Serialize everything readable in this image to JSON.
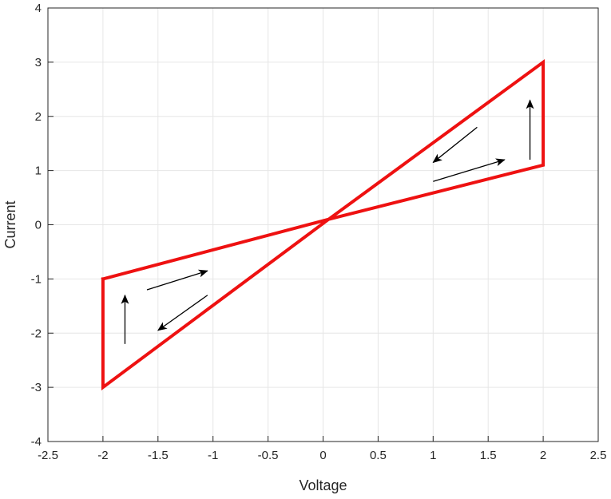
{
  "chart_data": {
    "type": "line",
    "title": "",
    "xlabel": "Voltage",
    "ylabel": "Current",
    "xlim": [
      -2.5,
      2.5
    ],
    "ylim": [
      -4,
      4
    ],
    "xticks": [
      -2.5,
      -2,
      -1.5,
      -1,
      -0.5,
      0,
      0.5,
      1,
      1.5,
      2,
      2.5
    ],
    "xtick_labels": [
      "-2.5",
      "-2",
      "-1.5",
      "-1",
      "-0.5",
      "0",
      "0.5",
      "1",
      "1.5",
      "2",
      "2.5"
    ],
    "yticks": [
      -4,
      -3,
      -2,
      -1,
      0,
      1,
      2,
      3,
      4
    ],
    "ytick_labels": [
      "-4",
      "-3",
      "-2",
      "-1",
      "0",
      "1",
      "2",
      "3",
      "4"
    ],
    "grid": true,
    "colors": {
      "series": "#ee1111",
      "arrows": "#000000",
      "grid": "#e6e6e6",
      "axes": "#262626"
    },
    "series": [
      {
        "x": [
          -2,
          -2,
          0.05,
          2,
          2,
          0.05,
          -2
        ],
        "y": [
          -1,
          -3,
          0.1,
          3,
          1.1,
          0.1,
          -1
        ]
      }
    ],
    "annotations": [
      {
        "type": "arrow",
        "x1": -1.8,
        "y1": -2.2,
        "x2": -1.8,
        "y2": -1.3
      },
      {
        "type": "arrow",
        "x1": -1.6,
        "y1": -1.2,
        "x2": -1.05,
        "y2": -0.85
      },
      {
        "type": "arrow",
        "x1": -1.05,
        "y1": -1.3,
        "x2": -1.5,
        "y2": -1.95
      },
      {
        "type": "arrow",
        "x1": 1.0,
        "y1": 0.8,
        "x2": 1.65,
        "y2": 1.2
      },
      {
        "type": "arrow",
        "x1": 1.4,
        "y1": 1.8,
        "x2": 1.0,
        "y2": 1.15
      },
      {
        "type": "arrow",
        "x1": 1.88,
        "y1": 1.2,
        "x2": 1.88,
        "y2": 2.3
      }
    ]
  }
}
